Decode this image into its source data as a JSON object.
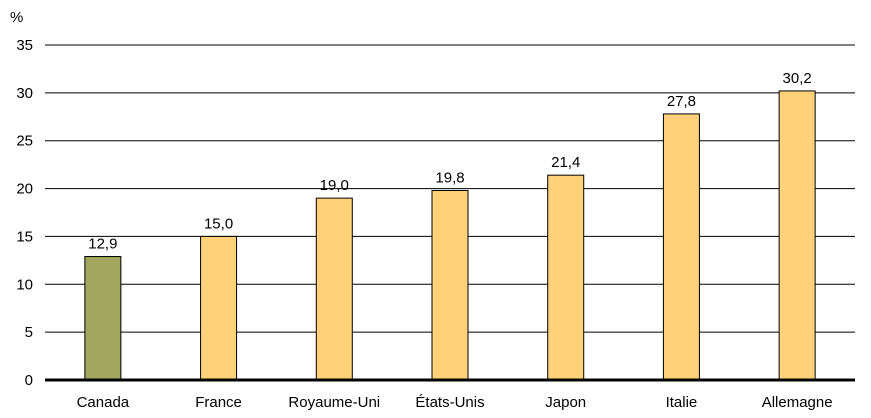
{
  "chart_data": {
    "type": "bar",
    "unit_label": "%",
    "categories": [
      "Canada",
      "France",
      "Royaume-Uni",
      "États-Unis",
      "Japon",
      "Italie",
      "Allemagne"
    ],
    "values": [
      12.9,
      15.0,
      19.0,
      19.8,
      21.4,
      27.8,
      30.2
    ],
    "value_labels": [
      "12,9",
      "15,0",
      "19,0",
      "19,8",
      "21,4",
      "27,8",
      "30,2"
    ],
    "highlight_category": "Canada",
    "colors": {
      "highlight": "#a3a65e",
      "default": "#ffd27a",
      "bar_stroke": "#000000",
      "grid": "#000000",
      "baseline": "#000000"
    },
    "ylim": [
      0,
      35
    ],
    "yticks": [
      0,
      5,
      10,
      15,
      20,
      25,
      30,
      35
    ],
    "grid": true
  }
}
